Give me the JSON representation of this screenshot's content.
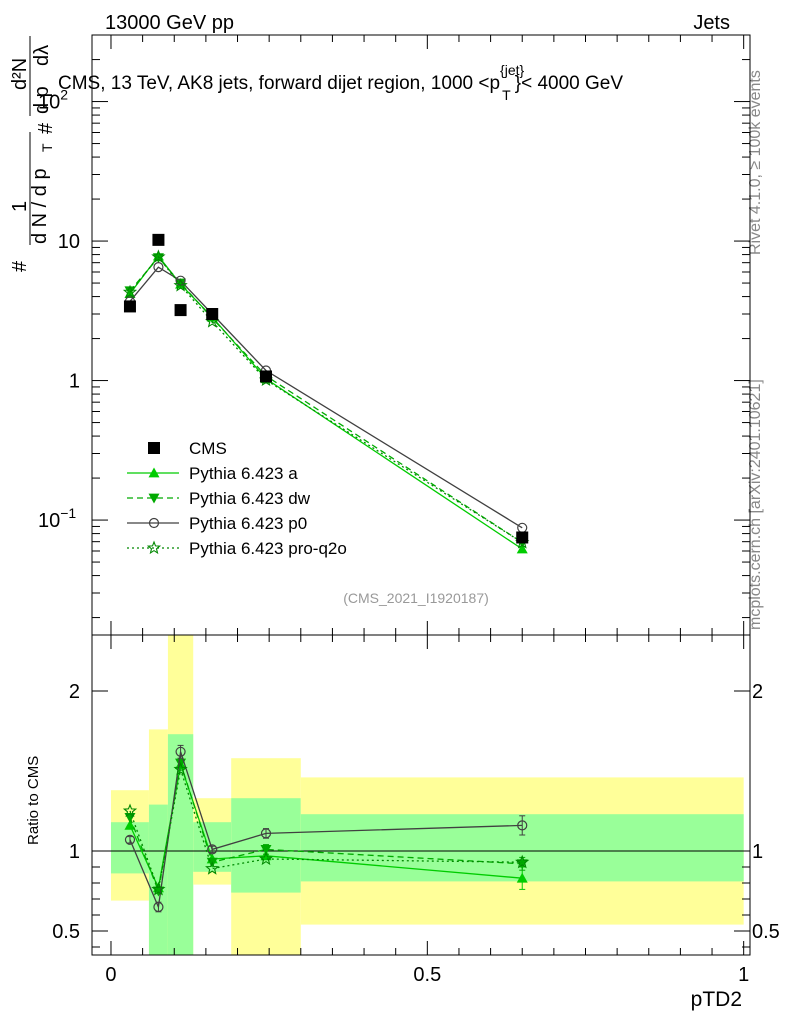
{
  "header": {
    "energy": "13000 GeV pp",
    "category": "Jets"
  },
  "side_labels": {
    "rivet": "Rivet 4.1.0, ≥ 100k events",
    "site": "mcplots.cern.ch [arXiv:2401.10621]"
  },
  "y_axis_label": {
    "hash1": "#",
    "one": "1",
    "dndpt": "d N / d p",
    "T": "T",
    "hash2": "#",
    "d2N": "d²N",
    "dpt": "d p",
    "dlambda": "dλ"
  },
  "ratio_label": "Ratio to CMS",
  "x_label": "pTD2",
  "analysis_id": "(CMS_2021_I1920187)",
  "chart_data": {
    "type": "line",
    "title_main": "CMS, 13 TeV, AK8 jets, forward dijet region, 1000 <p",
    "title_sup": "{jet}",
    "title_sub": "T",
    "title_tail": "}< 4000 GeV",
    "xlabel": "pTD2",
    "xlim": [
      -0.03,
      1.01
    ],
    "ylim_main": [
      0.015,
      300
    ],
    "y_scale": "log",
    "ylim_ratio": [
      0.35,
      2.35
    ],
    "x_ticks": [
      {
        "v": 0,
        "label": "0"
      },
      {
        "v": 0.5,
        "label": "0.5"
      },
      {
        "v": 1,
        "label": "1"
      }
    ],
    "y_ticks_main": [
      {
        "v": 0.1,
        "base": "10",
        "exp": "−1"
      },
      {
        "v": 1,
        "base": "1",
        "exp": ""
      },
      {
        "v": 10,
        "base": "10",
        "exp": ""
      },
      {
        "v": 100,
        "base": "10",
        "exp": "2"
      }
    ],
    "y_ticks_ratio": [
      {
        "v": 0.5,
        "label": "0.5"
      },
      {
        "v": 1,
        "label": "1"
      },
      {
        "v": 2,
        "label": "2"
      }
    ],
    "bins": [
      {
        "lo": 0.0,
        "hi": 0.06,
        "inner": [
          0.86,
          1.18
        ],
        "outer": [
          0.69,
          1.38
        ]
      },
      {
        "lo": 0.06,
        "hi": 0.09,
        "inner": [
          0.35,
          1.29
        ],
        "outer": [
          0.35,
          1.76
        ]
      },
      {
        "lo": 0.09,
        "hi": 0.13,
        "inner": [
          0.35,
          1.73
        ],
        "outer": [
          0.35,
          2.35
        ]
      },
      {
        "lo": 0.13,
        "hi": 0.19,
        "inner": [
          0.87,
          1.18
        ],
        "outer": [
          0.79,
          1.33
        ]
      },
      {
        "lo": 0.19,
        "hi": 0.3,
        "inner": [
          0.74,
          1.33
        ],
        "outer": [
          0.35,
          1.58
        ]
      },
      {
        "lo": 0.3,
        "hi": 1.0,
        "inner": [
          0.81,
          1.23
        ],
        "outer": [
          0.54,
          1.46
        ]
      }
    ],
    "data": {
      "name": "CMS",
      "x": [
        0.03,
        0.075,
        0.11,
        0.16,
        0.245,
        0.65
      ],
      "y": [
        3.4,
        10.2,
        3.2,
        3.0,
        1.07,
        0.075
      ]
    },
    "series": [
      {
        "name": "Pythia 6.423 a",
        "color": "#00cc00",
        "dash": "",
        "marker": "triangle-up",
        "x": [
          0.03,
          0.075,
          0.11,
          0.16,
          0.245,
          0.65
        ],
        "y": [
          4.2,
          7.8,
          4.9,
          2.85,
          1.03,
          0.062
        ],
        "ratio": [
          1.16,
          0.77,
          1.54,
          0.95,
          0.97,
          0.83
        ],
        "ratio_err": [
          0,
          0,
          0,
          0,
          0,
          0.07
        ]
      },
      {
        "name": "Pythia 6.423 dw",
        "color": "#00aa00",
        "dash": "6,4",
        "marker": "triangle-down",
        "x": [
          0.03,
          0.075,
          0.11,
          0.16,
          0.245,
          0.65
        ],
        "y": [
          4.4,
          7.6,
          5.0,
          2.8,
          1.08,
          0.069
        ],
        "ratio": [
          1.21,
          0.75,
          1.55,
          0.93,
          1.01,
          0.92
        ],
        "ratio_err": [
          0,
          0,
          0,
          0,
          0.03,
          0.04
        ]
      },
      {
        "name": "Pythia 6.423 p0",
        "color": "#404040",
        "dash": "",
        "marker": "circle-open",
        "x": [
          0.03,
          0.075,
          0.11,
          0.16,
          0.245,
          0.65
        ],
        "y": [
          3.7,
          6.5,
          5.2,
          3.0,
          1.18,
          0.088
        ],
        "ratio": [
          1.07,
          0.65,
          1.62,
          1.01,
          1.11,
          1.16
        ],
        "ratio_err": [
          0.02,
          0.03,
          0.04,
          0.02,
          0.03,
          0.06
        ]
      },
      {
        "name": "Pythia 6.423 pro-q2o",
        "color": "#008800",
        "dash": "2,3",
        "marker": "star",
        "x": [
          0.03,
          0.075,
          0.11,
          0.16,
          0.245,
          0.65
        ],
        "y": [
          4.3,
          7.7,
          4.8,
          2.65,
          1.01,
          0.069
        ],
        "ratio": [
          1.25,
          0.76,
          1.51,
          0.89,
          0.95,
          0.93
        ],
        "ratio_err": [
          0,
          0,
          0,
          0,
          0,
          0
        ]
      }
    ]
  }
}
